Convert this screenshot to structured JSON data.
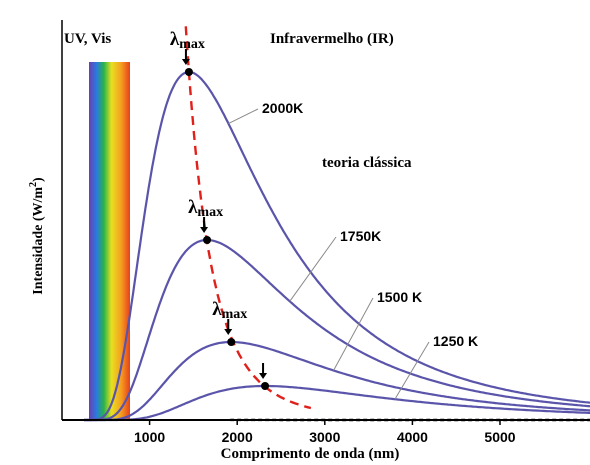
{
  "chart_data": {
    "type": "line",
    "xlabel": "Comprimento de onda (nm)",
    "ylabel": "Intensidade (W/m",
    "ylabel_sup": "2",
    "ylabel_close": ")",
    "x_ticks": [
      1000,
      2000,
      3000,
      4000,
      5000
    ],
    "xlim": [
      0,
      6500
    ],
    "ylim": [
      0,
      1
    ],
    "region_labels": {
      "uv_vis": "UV, Vis",
      "ir": "Infravermelho (IR)"
    },
    "lambda_label": "λ",
    "lambda_sub": "max",
    "classical_label": "teoria clássica",
    "series": [
      {
        "name": "2000K",
        "T": 2000,
        "peak_x": 1449,
        "peak_y": 0.87
      },
      {
        "name": "1750K",
        "T": 1750,
        "peak_x": 1656,
        "peak_y": 0.45
      },
      {
        "name": "1500 K",
        "T": 1500,
        "peak_x": 1932,
        "peak_y": 0.195
      },
      {
        "name": "1250 K",
        "T": 1250,
        "peak_x": 2318,
        "peak_y": 0.085
      }
    ],
    "colors": {
      "curve": "#5a55aa",
      "wien": "#e0201a",
      "classical": "#000000",
      "axis": "#000000",
      "leader": "#8a8a8a"
    }
  }
}
